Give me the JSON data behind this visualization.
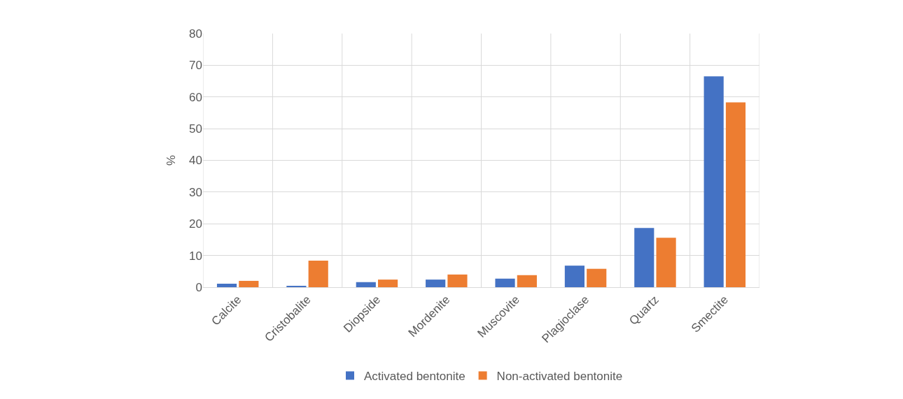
{
  "chart_data": {
    "type": "bar",
    "ylabel": "%",
    "categories": [
      "Calcite",
      "Cristobalite",
      "Diopside",
      "Mordenite",
      "Muscovite",
      "Plagioclase",
      "Quartz",
      "Smectite"
    ],
    "series": [
      {
        "name": "Activated bentonite",
        "color": "#4472c4",
        "values": [
          1.1,
          0.4,
          1.6,
          2.4,
          2.7,
          6.8,
          18.7,
          66.5
        ]
      },
      {
        "name": "Non-activated bentonite",
        "color": "#ed7d31",
        "values": [
          2.0,
          8.4,
          2.4,
          4.0,
          3.8,
          5.8,
          15.6,
          58.3
        ]
      }
    ],
    "ylim": [
      0,
      80
    ],
    "yticks": [
      0,
      10,
      20,
      30,
      40,
      50,
      60,
      70,
      80
    ],
    "grid": true,
    "legend": "bottom"
  }
}
